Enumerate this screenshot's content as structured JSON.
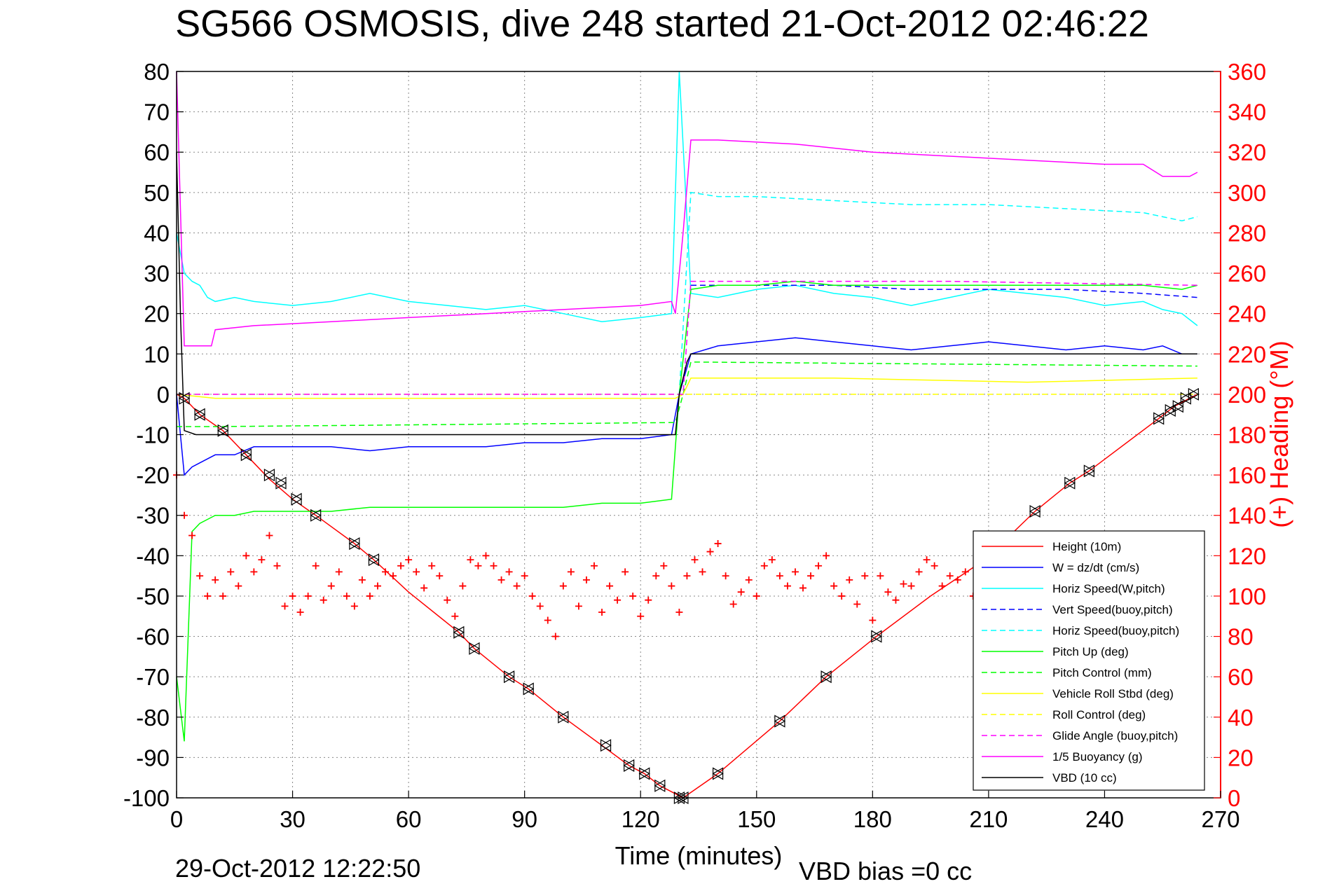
{
  "chart_data": {
    "type": "line",
    "title": "SG566 OSMOSIS, dive 248 started 21-Oct-2012 02:46:22",
    "xlabel": "Time (minutes)",
    "ylabel": "",
    "ylabel_right": "(+) Heading (°M)",
    "footer_left": "29-Oct-2012 12:22:50",
    "footer_right": "VBD bias =0 cc",
    "xlim": [
      0,
      270
    ],
    "ylim": [
      -100,
      80
    ],
    "ylim_right": [
      0,
      360
    ],
    "xticks": [
      "0",
      "30",
      "60",
      "90",
      "120",
      "150",
      "180",
      "210",
      "240",
      "270"
    ],
    "yticks": [
      "80",
      "70",
      "60",
      "50",
      "40",
      "30",
      "20",
      "10",
      "0",
      "-10",
      "-20",
      "-30",
      "-40",
      "-50",
      "-60",
      "-70",
      "-80",
      "-90",
      "-100"
    ],
    "yticks_right": [
      "360",
      "340",
      "320",
      "300",
      "280",
      "260",
      "240",
      "220",
      "200",
      "180",
      "160",
      "140",
      "120",
      "100",
      "80",
      "60",
      "40",
      "20",
      "0"
    ],
    "grid": true,
    "legend_position": "bottom-right",
    "series": [
      {
        "name": "Height (10m)",
        "color": "#ff0000",
        "style": "solid",
        "x": [
          0,
          2,
          6,
          12,
          18,
          24,
          30,
          36,
          46,
          51,
          60,
          73,
          77,
          86,
          91,
          100,
          110,
          117,
          121,
          125,
          129,
          131,
          140,
          156,
          168,
          181,
          195,
          209,
          222,
          231,
          236,
          254,
          258,
          262,
          264
        ],
        "y": [
          0,
          -1,
          -5,
          -9,
          -15,
          -21,
          -26,
          -30,
          -37,
          -41,
          -49,
          -59,
          -63,
          -70,
          -73,
          -80,
          -87,
          -92,
          -94,
          -97,
          -99,
          -100,
          -94,
          -81,
          -70,
          -60,
          -50,
          -41,
          -29,
          -22,
          -19,
          -6,
          -3,
          -1,
          0
        ]
      },
      {
        "name": "W = dz/dt (cm/s)",
        "color": "#0000ff",
        "style": "solid",
        "x": [
          0,
          2,
          4,
          6,
          8,
          10,
          15,
          20,
          30,
          40,
          50,
          60,
          70,
          80,
          90,
          100,
          110,
          120,
          128,
          130,
          133,
          140,
          150,
          160,
          170,
          180,
          190,
          200,
          210,
          220,
          230,
          240,
          250,
          255,
          260,
          264
        ],
        "y": [
          0,
          -20,
          -18,
          -17,
          -16,
          -15,
          -15,
          -13,
          -13,
          -13,
          -14,
          -13,
          -13,
          -13,
          -12,
          -12,
          -11,
          -11,
          -10,
          0,
          10,
          12,
          13,
          14,
          13,
          12,
          11,
          12,
          13,
          12,
          11,
          12,
          11,
          12,
          10,
          10
        ]
      },
      {
        "name": "Horiz Speed(W,pitch)",
        "color": "#00ffff",
        "style": "solid",
        "x": [
          0,
          2,
          4,
          6,
          8,
          10,
          15,
          20,
          30,
          40,
          50,
          60,
          70,
          80,
          90,
          100,
          110,
          120,
          128,
          130,
          133,
          140,
          150,
          160,
          170,
          180,
          190,
          200,
          210,
          220,
          230,
          240,
          250,
          255,
          260,
          264
        ],
        "y": [
          40,
          30,
          28,
          27,
          24,
          23,
          24,
          23,
          22,
          23,
          25,
          23,
          22,
          21,
          22,
          20,
          18,
          19,
          20,
          80,
          25,
          24,
          26,
          27,
          25,
          24,
          22,
          24,
          26,
          25,
          24,
          22,
          23,
          21,
          20,
          17
        ]
      },
      {
        "name": "Vert Speed(buoy,pitch)",
        "color": "#0000ff",
        "style": "dashed",
        "x": [
          133,
          150,
          170,
          190,
          210,
          230,
          250,
          264
        ],
        "y": [
          27,
          27,
          27,
          26,
          26,
          26,
          25,
          24
        ]
      },
      {
        "name": "Horiz Speed(buoy,pitch)",
        "color": "#00ffff",
        "style": "dashed",
        "x": [
          130,
          133,
          140,
          150,
          170,
          190,
          210,
          230,
          250,
          260,
          264
        ],
        "y": [
          0,
          50,
          49,
          49,
          48,
          47,
          47,
          46,
          45,
          43,
          44
        ]
      },
      {
        "name": "Pitch Up (deg)",
        "color": "#00ff00",
        "style": "solid",
        "x": [
          0,
          2,
          4,
          6,
          8,
          10,
          15,
          20,
          30,
          40,
          50,
          60,
          70,
          80,
          90,
          100,
          110,
          120,
          128,
          130,
          133,
          140,
          150,
          160,
          170,
          180,
          190,
          200,
          210,
          220,
          230,
          240,
          250,
          260,
          264
        ],
        "y": [
          -70,
          -86,
          -34,
          -32,
          -31,
          -30,
          -30,
          -29,
          -29,
          -29,
          -28,
          -28,
          -28,
          -28,
          -28,
          -28,
          -27,
          -27,
          -26,
          0,
          26,
          27,
          27,
          28,
          27,
          27,
          27,
          27,
          27,
          27,
          27,
          27,
          27,
          26,
          27
        ]
      },
      {
        "name": "Pitch Control (mm)",
        "color": "#00ff00",
        "style": "dashed",
        "x": [
          0,
          10,
          129,
          131,
          133,
          264
        ],
        "y": [
          -8,
          -8,
          -7,
          0,
          8,
          7
        ]
      },
      {
        "name": "Vehicle Roll Stbd (deg)",
        "color": "#ffff00",
        "style": "solid",
        "x": [
          0,
          10,
          60,
          129,
          131,
          133,
          170,
          220,
          264
        ],
        "y": [
          0,
          -1,
          -1,
          -1,
          0,
          4,
          4,
          3,
          4
        ]
      },
      {
        "name": "Roll Control (deg)",
        "color": "#ffff00",
        "style": "dashed",
        "x": [
          0,
          264
        ],
        "y": [
          0,
          0
        ]
      },
      {
        "name": "Glide Angle (buoy,pitch)",
        "color": "#ff00ff",
        "style": "dashed",
        "x": [
          0,
          129,
          131,
          133,
          200,
          264
        ],
        "y": [
          0,
          0,
          0,
          28,
          28,
          27
        ]
      },
      {
        "name": "1/5 Buoyancy (g)",
        "color": "#ff00ff",
        "style": "solid",
        "x": [
          0,
          2,
          9,
          10,
          20,
          40,
          60,
          80,
          100,
          120,
          128,
          129,
          131,
          133,
          140,
          160,
          180,
          200,
          220,
          240,
          250,
          255,
          262,
          264
        ],
        "y": [
          80,
          12,
          12,
          16,
          17,
          18,
          19,
          20,
          21,
          22,
          23,
          20,
          40,
          63,
          63,
          62,
          60,
          59,
          58,
          57,
          57,
          54,
          54,
          55
        ]
      },
      {
        "name": "VBD (10 cc)",
        "color": "#000000",
        "style": "solid",
        "x": [
          0,
          1,
          2,
          5,
          129,
          130,
          132,
          133,
          264
        ],
        "y": [
          60,
          20,
          -9,
          -10,
          -10,
          0,
          8,
          10,
          10
        ]
      }
    ],
    "heading_series": {
      "name": "(+) Heading",
      "color": "#ff0000",
      "marker": "+",
      "axis": "right",
      "x": [
        0,
        2,
        4,
        6,
        8,
        10,
        12,
        14,
        16,
        18,
        20,
        22,
        24,
        26,
        28,
        30,
        32,
        34,
        36,
        38,
        40,
        42,
        44,
        46,
        48,
        50,
        52,
        54,
        56,
        58,
        60,
        62,
        64,
        66,
        68,
        70,
        72,
        74,
        76,
        78,
        80,
        82,
        84,
        86,
        88,
        90,
        92,
        94,
        96,
        98,
        100,
        102,
        104,
        106,
        108,
        110,
        112,
        114,
        116,
        118,
        120,
        122,
        124,
        126,
        128,
        130,
        132,
        134,
        136,
        138,
        140,
        142,
        144,
        146,
        148,
        150,
        152,
        154,
        156,
        158,
        160,
        162,
        164,
        166,
        168,
        170,
        172,
        174,
        176,
        178,
        180,
        182,
        184,
        186,
        188,
        190,
        192,
        194,
        196,
        198,
        200,
        202,
        204,
        206,
        208
      ],
      "y": [
        160,
        140,
        130,
        110,
        100,
        108,
        100,
        112,
        105,
        120,
        112,
        118,
        130,
        115,
        95,
        100,
        92,
        100,
        115,
        98,
        105,
        112,
        100,
        95,
        108,
        100,
        105,
        112,
        110,
        115,
        118,
        112,
        104,
        115,
        110,
        98,
        90,
        105,
        118,
        115,
        120,
        115,
        108,
        112,
        105,
        110,
        100,
        95,
        88,
        80,
        105,
        112,
        95,
        108,
        115,
        92,
        105,
        98,
        112,
        100,
        90,
        98,
        110,
        115,
        105,
        92,
        110,
        118,
        112,
        122,
        126,
        110,
        96,
        102,
        108,
        100,
        115,
        118,
        110,
        105,
        112,
        104,
        110,
        115,
        120,
        105,
        100,
        108,
        96,
        110,
        88,
        110,
        102,
        98,
        106,
        105,
        112,
        118,
        115,
        105,
        110,
        108,
        112,
        100,
        120
      ]
    },
    "depth_markers": {
      "x": [
        2,
        6,
        12,
        18,
        24,
        27,
        31,
        36,
        46,
        51,
        73,
        77,
        86,
        91,
        100,
        111,
        117,
        121,
        125,
        130,
        131,
        140,
        156,
        168,
        181,
        209,
        222,
        231,
        236,
        254,
        257,
        259,
        261,
        263
      ],
      "y": [
        -1,
        -5,
        -9,
        -15,
        -20,
        -22,
        -26,
        -30,
        -37,
        -41,
        -59,
        -63,
        -70,
        -73,
        -80,
        -87,
        -92,
        -94,
        -97,
        -100,
        -100,
        -94,
        -81,
        -70,
        -60,
        -41,
        -29,
        -22,
        -19,
        -6,
        -4,
        -3,
        -1,
        0
      ]
    }
  }
}
